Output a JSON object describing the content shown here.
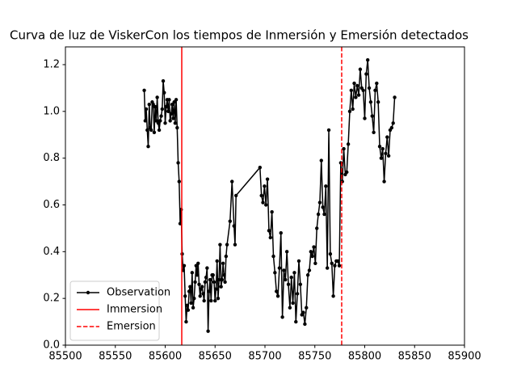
{
  "chart_data": {
    "type": "line",
    "title": "Curva de luz de ViskerCon los tiempos de Inmersión y Emersión detectados",
    "x": [
      85579,
      85580,
      85581,
      85582,
      85583,
      85584,
      85585,
      85586,
      85587,
      85588,
      85589,
      85590,
      85591,
      85592,
      85593,
      85594,
      85595,
      85596,
      85597,
      85598,
      85599,
      85600,
      85601,
      85602,
      85603,
      85604,
      85605,
      85606,
      85607,
      85608,
      85609,
      85610,
      85611,
      85612,
      85613,
      85614,
      85615,
      85616,
      85617,
      85618,
      85619,
      85620,
      85621,
      85622,
      85623,
      85624,
      85625,
      85626,
      85627,
      85628,
      85629,
      85630,
      85631,
      85632,
      85633,
      85634,
      85635,
      85636,
      85637,
      85638,
      85639,
      85640,
      85641,
      85642,
      85643,
      85644,
      85645,
      85646,
      85647,
      85648,
      85649,
      85650,
      85651,
      85652,
      85653,
      85654,
      85655,
      85656,
      85657,
      85658,
      85659,
      85660,
      85661,
      85662,
      85665,
      85667,
      85669,
      85670,
      85671,
      85695,
      85696.5,
      85698,
      85699.5,
      85701,
      85702.5,
      85704,
      85705.5,
      85707,
      85708.5,
      85710,
      85711.5,
      85713,
      85714.5,
      85716,
      85717.5,
      85719,
      85720.5,
      85722,
      85723.5,
      85725,
      85726.5,
      85728,
      85729.5,
      85731,
      85732.5,
      85734,
      85735.5,
      85737,
      85738.5,
      85740,
      85741.5,
      85743,
      85744.5,
      85746,
      85747.5,
      85749,
      85750.5,
      85752,
      85753.5,
      85755,
      85756.5,
      85758,
      85759.5,
      85761,
      85762.5,
      85764,
      85765.5,
      85767,
      85768.5,
      85770,
      85771.5,
      85773,
      85774.5,
      85776,
      85777.5,
      85779,
      85780.5,
      85782,
      85783.5,
      85785,
      85786.5,
      85788,
      85789.5,
      85791,
      85792.5,
      85794,
      85795.5,
      85797,
      85798.5,
      85800,
      85801.5,
      85803,
      85804.5,
      85806,
      85807.5,
      85809,
      85810.5,
      85812,
      85813.5,
      85815,
      85816.5,
      85818,
      85819.5,
      85821,
      85822.5,
      85824,
      85825.5,
      85827,
      85828.5,
      85830
    ],
    "series": [
      {
        "name": "Observation",
        "color": "#000000",
        "values": [
          1.09,
          0.96,
          1.01,
          0.92,
          0.85,
          1.03,
          0.93,
          0.92,
          1.04,
          1.03,
          0.91,
          1.02,
          0.96,
          1.06,
          0.95,
          0.92,
          0.96,
          0.98,
          1.01,
          1.13,
          1.08,
          0.95,
          1.02,
          1.05,
          1.0,
          1.05,
          0.96,
          0.99,
          1.03,
          0.97,
          1.04,
          0.95,
          1.05,
          0.93,
          0.78,
          0.7,
          0.52,
          0.58,
          0.39,
          0.32,
          0.34,
          0.21,
          0.1,
          0.17,
          0.15,
          0.23,
          0.25,
          0.18,
          0.31,
          0.16,
          0.2,
          0.27,
          0.34,
          0.3,
          0.35,
          0.26,
          0.21,
          0.24,
          0.25,
          0.22,
          0.19,
          0.27,
          0.29,
          0.33,
          0.06,
          0.23,
          0.28,
          0.19,
          0.3,
          0.3,
          0.27,
          0.19,
          0.24,
          0.36,
          0.2,
          0.28,
          0.43,
          0.25,
          0.28,
          0.35,
          0.3,
          0.27,
          0.38,
          0.43,
          0.53,
          0.7,
          0.51,
          0.43,
          0.64,
          0.76,
          0.64,
          0.61,
          0.68,
          0.6,
          0.71,
          0.49,
          0.46,
          0.57,
          0.38,
          0.31,
          0.23,
          0.21,
          0.33,
          0.48,
          0.12,
          0.32,
          0.28,
          0.4,
          0.26,
          0.16,
          0.29,
          0.18,
          0.31,
          0.1,
          0.22,
          0.36,
          0.26,
          0.13,
          0.14,
          0.09,
          0.16,
          0.3,
          0.32,
          0.4,
          0.38,
          0.42,
          0.35,
          0.5,
          0.56,
          0.61,
          0.79,
          0.59,
          0.56,
          0.68,
          0.33,
          0.92,
          0.39,
          0.35,
          0.21,
          0.34,
          0.36,
          0.36,
          0.34,
          0.78,
          0.7,
          0.84,
          0.73,
          0.74,
          0.86,
          1.0,
          1.09,
          1.01,
          1.12,
          1.06,
          1.11,
          1.07,
          1.18,
          1.1,
          1.09,
          0.97,
          1.16,
          1.22,
          1.1,
          1.04,
          0.98,
          0.91,
          1.09,
          1.12,
          1.04,
          0.85,
          0.8,
          0.84,
          0.7,
          0.82,
          0.89,
          0.81,
          0.92,
          0.93,
          0.95,
          1.06
        ]
      }
    ],
    "vlines": [
      {
        "name": "Immersion",
        "x": 85616.6,
        "color": "#ff0000",
        "style": "solid"
      },
      {
        "name": "Emersion",
        "x": 85776.9,
        "color": "#ff0000",
        "style": "dashed"
      }
    ],
    "xlim": [
      85500,
      85900
    ],
    "xticks": [
      85500,
      85550,
      85600,
      85650,
      85700,
      85750,
      85800,
      85850,
      85900
    ],
    "ylim": [
      0,
      1.276
    ],
    "yticks": [
      {
        "value": 0,
        "label": "0.0"
      },
      0.2,
      0.4,
      0.6,
      0.8,
      {
        "value": 1,
        "label": "1.0"
      },
      1.2
    ],
    "legend": "lower left"
  }
}
